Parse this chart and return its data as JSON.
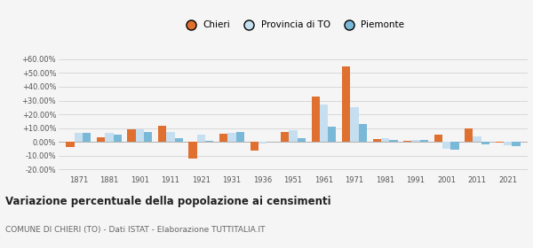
{
  "years": [
    1871,
    1881,
    1901,
    1911,
    1921,
    1931,
    1936,
    1951,
    1961,
    1971,
    1981,
    1991,
    2001,
    2011,
    2021
  ],
  "chieri": [
    -4.0,
    3.5,
    9.0,
    11.5,
    -12.0,
    6.0,
    -6.0,
    7.5,
    33.0,
    55.0,
    2.0,
    1.0,
    5.0,
    9.5,
    -0.3
  ],
  "provincia": [
    6.5,
    6.5,
    9.0,
    7.5,
    5.5,
    6.5,
    -1.0,
    8.5,
    27.0,
    25.5,
    2.5,
    1.5,
    -5.0,
    4.0,
    -2.5
  ],
  "piemonte": [
    6.5,
    5.5,
    7.5,
    2.5,
    0.5,
    7.0,
    0.0,
    3.0,
    11.0,
    13.0,
    1.5,
    1.5,
    -5.5,
    -2.0,
    -3.0
  ],
  "color_chieri": "#e07030",
  "color_provincia": "#c5dff0",
  "color_piemonte": "#7ab8d8",
  "title": "Variazione percentuale della popolazione ai censimenti",
  "subtitle": "COMUNE DI CHIERI (TO) - Dati ISTAT - Elaborazione TUTTITALIA.IT",
  "ytick_vals": [
    -20,
    -10,
    0,
    10,
    20,
    30,
    40,
    50,
    60
  ],
  "ylim": [
    -23,
    67
  ],
  "background_color": "#f5f5f5",
  "legend_labels": [
    "Chieri",
    "Provincia di TO",
    "Piemonte"
  ]
}
